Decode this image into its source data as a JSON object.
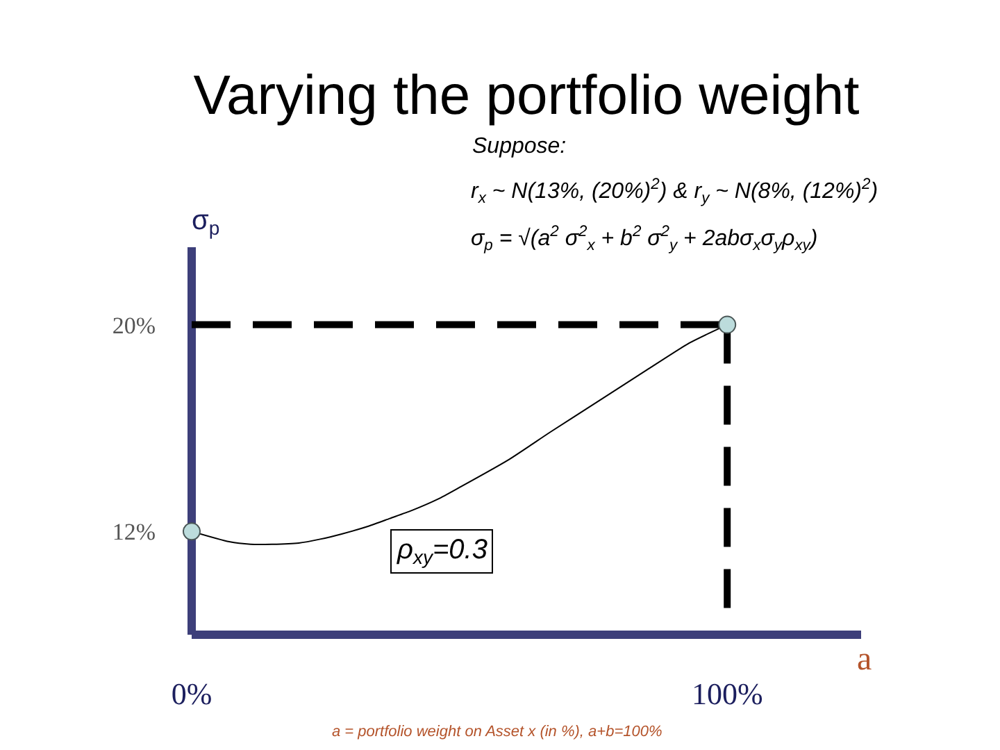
{
  "chart_data": {
    "type": "line",
    "title": "Varying the portfolio weight",
    "xlabel": "a",
    "ylabel": "σ$_{p}$",
    "annotations": [
      "Suppose:",
      "r$_{x}$ ~ N(13%, (20%)$^{2}$) & r$_{y}$ ~ N(8%, (12%)$^{2}$)",
      "σ$_{p}$ = √(a$^{2}$ σ$^{2}$$_{x}$ + b$^{2}$ σ$^{2}$$_{y}$ + 2abσ$_{x}$σ$_{y}$ρ$_{xy}$)",
      "ρ$_{xy}$=0.3",
      "a = portfolio weight on Asset x (in %), a+b=100%"
    ],
    "series": [
      {
        "color": "#000000",
        "x": [
          0,
          7,
          11,
          15,
          20,
          24,
          28,
          33,
          37,
          41,
          46,
          50,
          59,
          67,
          76,
          85,
          93,
          100
        ],
        "values": [
          12,
          11.6,
          11.5,
          11.5,
          11.55,
          11.7,
          11.9,
          12.2,
          12.5,
          12.8,
          13.25,
          13.7,
          14.75,
          15.85,
          17.05,
          18.25,
          19.3,
          20
        ]
      },
      {
        "color": "#000000",
        "line_style": "dashed",
        "x": [
          0,
          100
        ],
        "values": [
          20,
          20
        ]
      },
      {
        "color": "#000000",
        "line_style": "dashed",
        "x": [
          100,
          100
        ],
        "values": [
          20,
          8.9
        ]
      },
      {
        "type": "scatter",
        "color": "#bcdcdc",
        "marker": "circle",
        "x": [
          0,
          100
        ],
        "values": [
          12,
          20
        ]
      }
    ],
    "xlim": [
      0,
      125
    ],
    "ylim": [
      8,
      23
    ],
    "xticks": [
      {
        "value": 0,
        "label": "0%"
      },
      {
        "value": 100,
        "label": "100%"
      }
    ],
    "yticks": [
      {
        "value": 12,
        "label": "12%"
      },
      {
        "value": 20,
        "label": "20%"
      }
    ]
  }
}
